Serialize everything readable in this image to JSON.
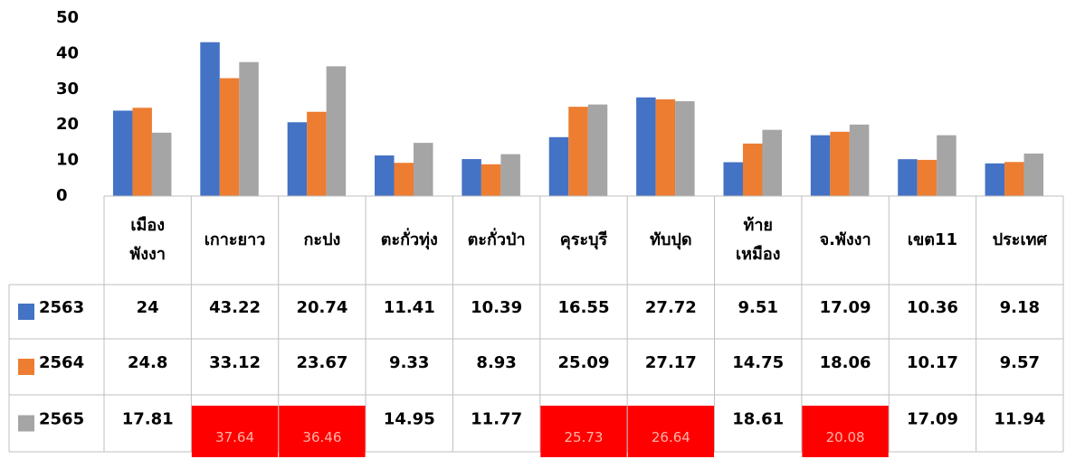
{
  "chart_data": {
    "type": "bar",
    "categories": [
      "เมือง\nพังงา",
      "เกาะยาว",
      "กะปง",
      "ตะกั่วทุ่ง",
      "ตะกั่วป่า",
      "คุระบุรี",
      "ทับปุด",
      "ท้าย\nเหมือง",
      "จ.พังงา",
      "เขต11",
      "ประเทศ"
    ],
    "series": [
      {
        "name": "2563",
        "color": "#4472c4",
        "values": [
          24,
          43.22,
          20.74,
          11.41,
          10.39,
          16.55,
          27.72,
          9.51,
          17.09,
          10.36,
          9.18
        ]
      },
      {
        "name": "2564",
        "color": "#ed7d31",
        "values": [
          24.8,
          33.12,
          23.67,
          9.33,
          8.93,
          25.09,
          27.17,
          14.75,
          18.06,
          10.17,
          9.57
        ]
      },
      {
        "name": "2565",
        "color": "#a5a5a5",
        "values": [
          17.81,
          37.64,
          36.46,
          14.95,
          11.77,
          25.73,
          26.64,
          18.61,
          20.08,
          17.09,
          11.94
        ],
        "highlighted": [
          1,
          2,
          5,
          6,
          8
        ],
        "highlight_color": "#ff0000"
      }
    ],
    "ylim": [
      0,
      50
    ],
    "yticks": [
      0,
      10,
      20,
      30,
      40,
      50
    ],
    "grid": false,
    "data_table": true
  }
}
